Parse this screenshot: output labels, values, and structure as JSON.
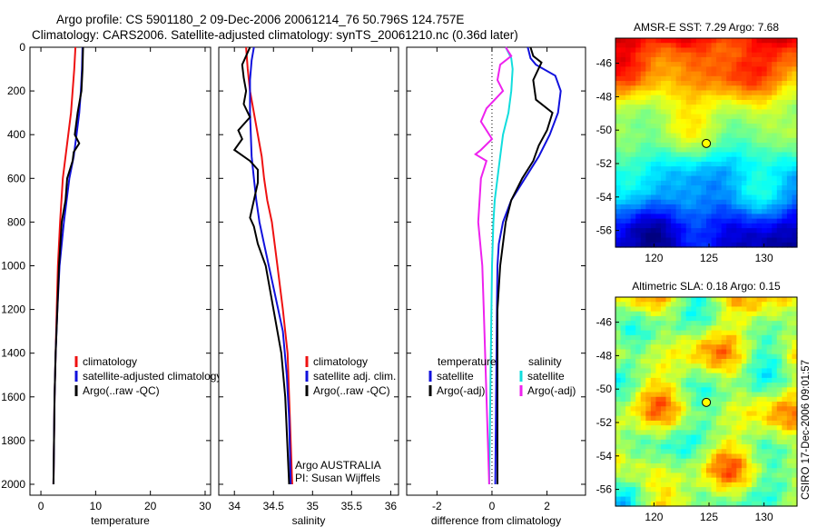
{
  "figure": {
    "title_line1": "Argo profile: CS 5901180_2 09-Dec-2006 20061214_76 50.796S 124.757E",
    "title_line2": "Climatology: CARS2006. Satellite-adjusted climatology: synTS_20061210.nc (0.36d later)",
    "side_text": "CSIRO 17-Dec-2006 09:01:57",
    "colors": {
      "climatology": "#ee1111",
      "satellite": "#1111dd",
      "argo": "#000000",
      "sat_diff": "#11dddd",
      "argo_diff": "#ee22ee"
    }
  },
  "chart_data": [
    {
      "id": "temperature",
      "type": "line",
      "xlabel": "temperature",
      "ylabel": "",
      "xlim": [
        -2,
        31
      ],
      "ylim": [
        2050,
        0
      ],
      "xticks": [
        0,
        10,
        20,
        30
      ],
      "yticks": [
        0,
        200,
        400,
        600,
        800,
        1000,
        1200,
        1400,
        1600,
        1800,
        2000
      ],
      "series": [
        {
          "name": "climatology",
          "color": "#ee1111",
          "x": [
            6.3,
            6.1,
            5.8,
            5.5,
            5.0,
            4.5,
            4.0,
            3.5,
            3.1,
            2.9,
            2.7,
            2.5,
            2.4,
            2.3
          ],
          "y": [
            0,
            100,
            200,
            300,
            400,
            500,
            600,
            800,
            1000,
            1200,
            1400,
            1600,
            1800,
            2000
          ]
        },
        {
          "name": "satellite-adjusted climatology",
          "color": "#1111dd",
          "x": [
            7.6,
            7.5,
            7.3,
            7.0,
            6.5,
            6.0,
            5.2,
            4.2,
            3.4,
            3.0,
            2.7,
            2.5,
            2.4,
            2.3
          ],
          "y": [
            0,
            100,
            200,
            300,
            400,
            500,
            600,
            800,
            1000,
            1200,
            1400,
            1600,
            1800,
            2000
          ]
        },
        {
          "name": "Argo(..raw -QC)",
          "color": "#000000",
          "x": [
            7.7,
            7.6,
            7.4,
            6.7,
            6.2,
            7.0,
            6.0,
            5.8,
            4.8,
            4.5,
            3.8,
            3.3,
            3.0,
            2.7,
            2.5,
            2.3
          ],
          "y": [
            0,
            100,
            200,
            300,
            400,
            440,
            480,
            520,
            600,
            700,
            800,
            1000,
            1200,
            1400,
            1600,
            2000
          ]
        }
      ],
      "legend": {
        "entries": [
          "climatology",
          "satellite-adjusted climatology",
          "Argo(..raw -QC)"
        ]
      }
    },
    {
      "id": "salinity",
      "type": "line",
      "xlabel": "salinity",
      "ylabel": "",
      "xlim": [
        33.8,
        36.1
      ],
      "ylim": [
        2050,
        0
      ],
      "xticks": [
        34,
        34.5,
        35,
        35.5,
        36
      ],
      "xtick_labels": [
        "34",
        "34.5",
        "35",
        "35.5",
        "36"
      ],
      "series": [
        {
          "name": "climatology",
          "color": "#ee1111",
          "x": [
            34.15,
            34.17,
            34.2,
            34.25,
            34.3,
            34.35,
            34.38,
            34.42,
            34.48,
            34.55,
            34.62,
            34.68,
            34.7,
            34.72,
            34.74
          ],
          "y": [
            0,
            100,
            200,
            300,
            400,
            500,
            600,
            700,
            800,
            1000,
            1200,
            1400,
            1600,
            1800,
            2000
          ]
        },
        {
          "name": "satellite adj. clim.",
          "color": "#1111dd",
          "x": [
            34.25,
            34.22,
            34.2,
            34.2,
            34.22,
            34.25,
            34.28,
            34.32,
            34.38,
            34.5,
            34.62,
            34.67,
            34.7,
            34.72
          ],
          "y": [
            0,
            60,
            150,
            300,
            500,
            600,
            700,
            800,
            900,
            1100,
            1300,
            1500,
            1700,
            2000
          ]
        },
        {
          "name": "Argo(..raw -QC)",
          "color": "#000000",
          "x": [
            34.2,
            34.1,
            34.12,
            34.15,
            34.12,
            34.2,
            34.05,
            34.1,
            34.0,
            34.2,
            34.3,
            34.3,
            34.2,
            34.25,
            34.3,
            34.4,
            34.5,
            34.6,
            34.65,
            34.7
          ],
          "y": [
            0,
            80,
            140,
            200,
            260,
            320,
            380,
            420,
            470,
            520,
            560,
            620,
            780,
            820,
            900,
            1000,
            1200,
            1400,
            1600,
            2000
          ]
        }
      ],
      "legend": {
        "entries": [
          "climatology",
          "satellite adj. clim.",
          "Argo(..raw -QC)"
        ]
      },
      "annotation": [
        "Argo AUSTRALIA",
        "PI: Susan Wijffels"
      ]
    },
    {
      "id": "difference",
      "type": "line",
      "xlabel": "difference from climatology",
      "ylabel": "",
      "xlim": [
        -3.1,
        3.4
      ],
      "ylim": [
        2050,
        0
      ],
      "xticks": [
        -2,
        0,
        2
      ],
      "series": [
        {
          "name": "temperature satellite",
          "color": "#1111dd",
          "x": [
            1.3,
            1.4,
            1.6,
            2.3,
            2.5,
            2.4,
            2.1,
            1.7,
            1.2,
            0.7,
            0.4,
            0.25,
            0.2,
            0.18,
            0.15,
            0.12
          ],
          "y": [
            0,
            50,
            80,
            130,
            200,
            300,
            400,
            500,
            600,
            700,
            800,
            900,
            1000,
            1200,
            1600,
            2000
          ]
        },
        {
          "name": "temperature Argo(-adj)",
          "color": "#000000",
          "x": [
            1.4,
            1.5,
            1.8,
            1.5,
            1.6,
            2.2,
            2.0,
            1.7,
            1.5,
            1.1,
            0.7,
            0.5,
            0.3,
            0.2,
            0.2
          ],
          "y": [
            0,
            40,
            70,
            150,
            240,
            300,
            380,
            450,
            520,
            600,
            700,
            800,
            1000,
            1200,
            2000
          ]
        },
        {
          "name": "salinity satellite",
          "color": "#11dddd",
          "x": [
            0.5,
            0.7,
            0.75,
            0.7,
            0.6,
            0.4,
            0.3,
            0.2,
            0.1,
            0.05,
            0.0,
            -0.05,
            -0.1
          ],
          "y": [
            0,
            50,
            100,
            200,
            300,
            400,
            500,
            600,
            700,
            800,
            1000,
            1500,
            2000
          ]
        },
        {
          "name": "salinity Argo(-adj)",
          "color": "#ee22ee",
          "x": [
            0.5,
            0.7,
            0.3,
            0.2,
            0.4,
            -0.2,
            -0.4,
            0.0,
            -0.4,
            -0.6,
            -0.2,
            -0.4,
            -0.5,
            -0.35,
            -0.3,
            -0.2,
            -0.1
          ],
          "y": [
            0,
            40,
            80,
            150,
            200,
            280,
            340,
            420,
            470,
            490,
            520,
            600,
            800,
            1000,
            1200,
            1600,
            2000
          ]
        }
      ],
      "legend": {
        "headers": [
          "temperature",
          "salinity"
        ],
        "entries": [
          "satellite",
          "Argo(-adj)",
          "satellite",
          "Argo(-adj)"
        ]
      }
    },
    {
      "id": "sst_map",
      "type": "heatmap",
      "title": "AMSR-E SST: 7.29 Argo: 7.68",
      "xlim": [
        116.5,
        133
      ],
      "ylim": [
        -57,
        -44.5
      ],
      "xticks": [
        120,
        125,
        130
      ],
      "yticks": [
        -46,
        -48,
        -50,
        -52,
        -54,
        -56
      ],
      "marker": {
        "lon": 124.757,
        "lat": -50.796
      }
    },
    {
      "id": "sla_map",
      "type": "heatmap",
      "title": "Altimetric SLA: 0.18 Argo: 0.15",
      "xlim": [
        116.5,
        133
      ],
      "ylim": [
        -57,
        -44.5
      ],
      "xticks": [
        120,
        125,
        130
      ],
      "yticks": [
        -46,
        -48,
        -50,
        -52,
        -54,
        -56
      ],
      "marker": {
        "lon": 124.757,
        "lat": -50.796
      }
    }
  ]
}
